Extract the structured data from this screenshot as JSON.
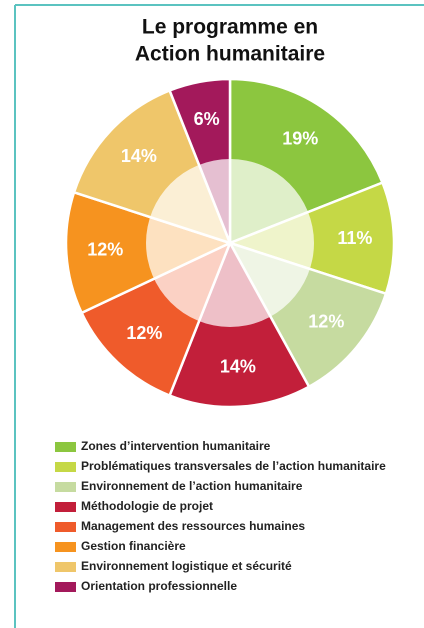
{
  "chart_data": {
    "type": "pie",
    "title": [
      "Le programme en",
      "Action humanitaire"
    ],
    "categories": [
      "Zones d’intervention humanitaire",
      "Problématiques transversales de l’action humanitaire",
      "Environnement de l’action humanitaire",
      "Méthodologie de projet",
      "Management des ressources humaines",
      "Gestion financière",
      "Environnement logistique et sécurité",
      "Orientation professionnelle"
    ],
    "values": [
      19,
      11,
      12,
      14,
      12,
      12,
      14,
      6
    ],
    "value_labels": [
      "19%",
      "11%",
      "12%",
      "14%",
      "12%",
      "12%",
      "14%",
      "6%"
    ],
    "colors": [
      "#8cc63f",
      "#c5d846",
      "#c6dba0",
      "#c21f3a",
      "#ef5b2b",
      "#f6931f",
      "#efc66a",
      "#a3195b"
    ]
  }
}
